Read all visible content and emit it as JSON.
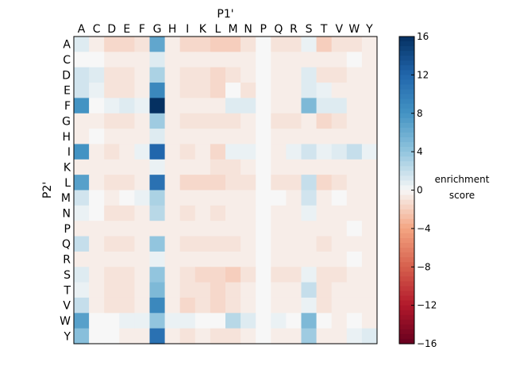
{
  "chart_data": {
    "type": "heatmap",
    "xlabel": "P1'",
    "ylabel": "P2'",
    "x_categories": [
      "A",
      "C",
      "D",
      "E",
      "F",
      "G",
      "H",
      "I",
      "K",
      "L",
      "M",
      "N",
      "P",
      "Q",
      "R",
      "S",
      "T",
      "V",
      "W",
      "Y"
    ],
    "y_categories": [
      "A",
      "C",
      "D",
      "E",
      "F",
      "G",
      "H",
      "I",
      "K",
      "L",
      "M",
      "N",
      "P",
      "Q",
      "R",
      "S",
      "T",
      "V",
      "W",
      "Y"
    ],
    "colorbar": {
      "label_lines": [
        "enrichment",
        "score"
      ],
      "range": [
        -16,
        16
      ],
      "ticks": [
        "16",
        "12",
        "8",
        "4",
        "0",
        "−4",
        "−8",
        "−12",
        "−16"
      ],
      "colormap": "RdBu"
    },
    "values": [
      [
        1,
        -0.5,
        -1.5,
        -1.5,
        -1,
        6.5,
        -0.5,
        -1.5,
        -1.5,
        -2,
        -2,
        -1,
        0,
        -1,
        -1,
        0.5,
        -2,
        -1,
        -1,
        -0.5
      ],
      [
        0,
        0,
        -0.5,
        -0.5,
        -0.5,
        1,
        -0.5,
        -0.5,
        -0.5,
        -0.5,
        -0.5,
        -0.5,
        0,
        -0.5,
        -0.5,
        -0.5,
        -0.5,
        -0.5,
        0,
        -0.5
      ],
      [
        1.5,
        1,
        -1,
        -1,
        -0.5,
        3,
        -0.5,
        -1,
        -1,
        -1.5,
        -1,
        -0.5,
        0,
        -0.5,
        -0.5,
        1,
        -1,
        -1,
        -0.5,
        -0.5
      ],
      [
        1.5,
        0.5,
        -1,
        -1,
        -0.5,
        9,
        -0.5,
        -1,
        -1,
        -1.5,
        0,
        -1,
        0,
        -0.5,
        -0.5,
        1,
        0.5,
        -0.5,
        -0.5,
        -0.5
      ],
      [
        8,
        0,
        0.5,
        1,
        0.5,
        16,
        -0.5,
        -0.5,
        -0.5,
        -0.5,
        1,
        1,
        0,
        -0.5,
        -0.5,
        5,
        1,
        1,
        -0.5,
        -0.5
      ],
      [
        -0.5,
        -0.5,
        -1,
        -1,
        -0.5,
        3.5,
        -0.5,
        -1,
        -1,
        -1,
        -1,
        -0.5,
        0,
        -1,
        -1,
        -0.5,
        -1.5,
        -1,
        -0.5,
        -0.5
      ],
      [
        -0.5,
        0,
        -0.5,
        -0.5,
        -0.5,
        1,
        -0.5,
        -0.5,
        -0.5,
        -0.5,
        -0.5,
        -0.5,
        0,
        -0.5,
        -0.5,
        -0.5,
        -0.5,
        -0.5,
        -0.5,
        -0.5
      ],
      [
        8,
        -0.5,
        -1,
        -0.5,
        0.5,
        12,
        -0.5,
        -1,
        -0.5,
        -1.5,
        0.5,
        0.5,
        0,
        -0.5,
        0.5,
        1.5,
        0.5,
        1,
        2,
        0.5
      ],
      [
        -0.5,
        -0.5,
        -0.5,
        -0.5,
        -0.5,
        0.5,
        -0.5,
        -0.5,
        -0.5,
        -1,
        -1,
        -0.5,
        0,
        -0.5,
        -0.5,
        -0.5,
        -0.5,
        -0.5,
        -0.5,
        -0.5
      ],
      [
        7,
        -0.5,
        -1,
        -1,
        -0.5,
        11,
        -0.5,
        -1.5,
        -1.5,
        -1.5,
        -1,
        -1,
        0,
        -1,
        -1,
        2,
        -1.5,
        -1,
        -0.5,
        -0.5
      ],
      [
        1.5,
        0,
        -0.5,
        0,
        0.5,
        3,
        -0.5,
        -0.5,
        -0.5,
        -0.5,
        -0.5,
        -0.5,
        0,
        0,
        -0.5,
        1.5,
        -0.5,
        0,
        -0.5,
        -0.5
      ],
      [
        0.5,
        0,
        -1,
        -1,
        -0.5,
        2.5,
        -0.5,
        -1,
        -0.5,
        -1,
        -0.5,
        -0.5,
        0,
        -0.5,
        -0.5,
        0.5,
        -0.5,
        -0.5,
        -0.5,
        -0.5
      ],
      [
        -0.5,
        -0.5,
        -0.5,
        -0.5,
        -0.5,
        -0.5,
        -0.5,
        -0.5,
        -0.5,
        -0.5,
        -0.5,
        -0.5,
        0,
        -0.5,
        -0.5,
        -0.5,
        -0.5,
        -0.5,
        0,
        -0.5
      ],
      [
        2,
        -0.5,
        -1,
        -1,
        -0.5,
        4,
        -0.5,
        -1,
        -1,
        -1,
        -1,
        -0.5,
        0,
        -0.5,
        -0.5,
        -0.5,
        -1,
        -0.5,
        -0.5,
        -0.5
      ],
      [
        -0.5,
        -0.5,
        -0.5,
        -0.5,
        -0.5,
        0.5,
        -0.5,
        -0.5,
        -0.5,
        -0.5,
        -0.5,
        -0.5,
        0,
        -0.5,
        -0.5,
        -0.5,
        -0.5,
        -0.5,
        0,
        -0.5
      ],
      [
        1,
        -0.5,
        -1,
        -1,
        -0.5,
        4,
        -0.5,
        -1,
        -1.5,
        -1.5,
        -2,
        -1,
        0,
        -1,
        -1,
        0.5,
        -1,
        -1,
        -0.5,
        -0.5
      ],
      [
        0.5,
        -0.5,
        -1,
        -1,
        -0.5,
        5,
        -0.5,
        -1,
        -1,
        -1.5,
        -1,
        -0.5,
        0,
        -0.5,
        -0.5,
        2,
        -1,
        -0.5,
        -0.5,
        -0.5
      ],
      [
        2,
        -0.5,
        -1,
        -1,
        -0.5,
        9,
        -0.5,
        -1.5,
        -1,
        -1.5,
        -1,
        -0.5,
        0,
        -0.5,
        -0.5,
        0.5,
        -1,
        -0.5,
        -0.5,
        -0.5
      ],
      [
        7,
        0,
        0,
        0.5,
        0.5,
        4,
        0.5,
        0.5,
        0,
        0,
        2.5,
        1,
        0,
        0.5,
        0,
        5,
        0,
        -0.5,
        0,
        -0.5
      ],
      [
        4.5,
        0,
        0,
        -0.5,
        -0.5,
        11,
        -0.5,
        -1,
        -0.5,
        -1,
        -1,
        -0.5,
        0,
        -0.5,
        -0.5,
        3.5,
        -0.5,
        -0.5,
        0.5,
        1
      ]
    ]
  }
}
